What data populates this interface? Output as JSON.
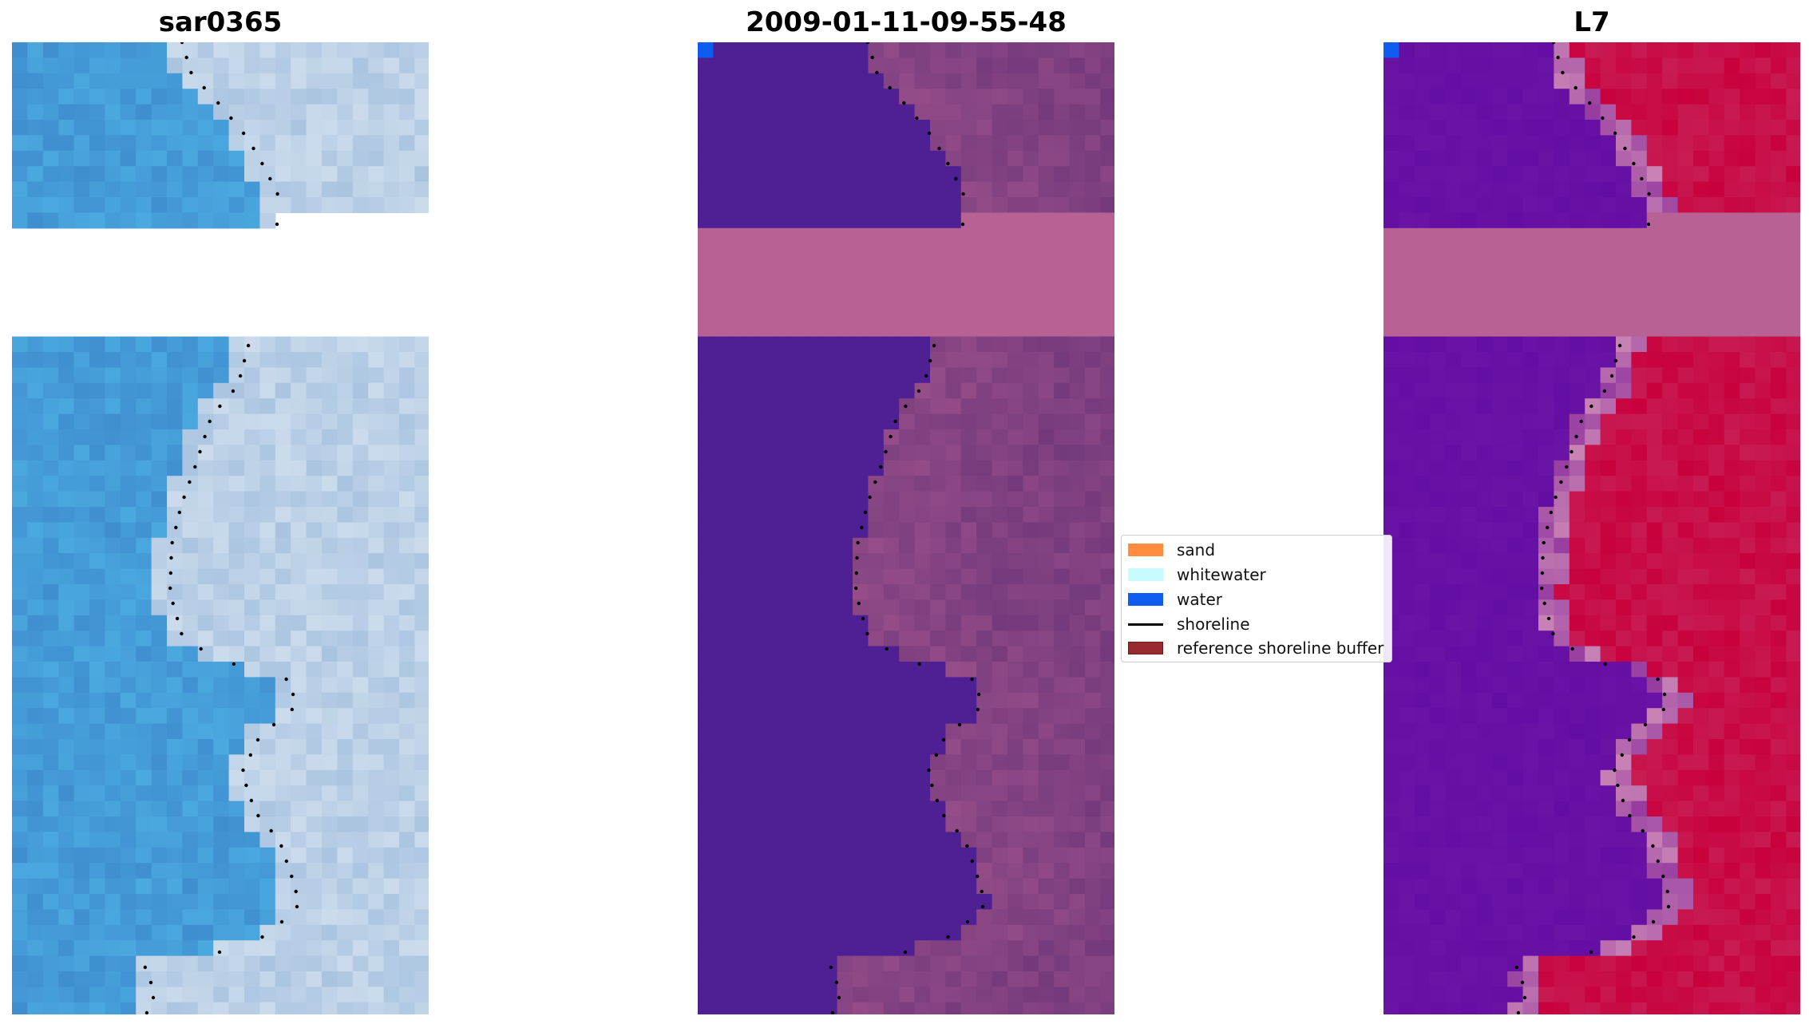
{
  "panels": [
    {
      "id": "rgb",
      "title": "sar0365",
      "colormap": "rgb"
    },
    {
      "id": "class",
      "title": "2009-01-11-09-55-48",
      "colormap": "class"
    },
    {
      "id": "index",
      "title": "L7",
      "colormap": "index"
    }
  ],
  "legend": {
    "items": [
      {
        "label": "sand",
        "kind": "patch",
        "color": "#ff8c3f"
      },
      {
        "label": "whitewater",
        "kind": "patch",
        "color": "#c8fbfb"
      },
      {
        "label": "water",
        "kind": "patch",
        "color": "#0e5cf0"
      },
      {
        "label": "shoreline",
        "kind": "line",
        "color": "#000000"
      },
      {
        "label": "reference shoreline buffer",
        "kind": "patch",
        "color": "#9a2a32"
      }
    ]
  },
  "colors": {
    "nodata_band": "#b86195",
    "water_class": "#4f1f94",
    "land_class_base": "#a4568f",
    "index_water": "#6a14a6",
    "index_land": "#c8003c",
    "rgb_water": "#3f8fd0",
    "rgb_land": "#aac4e0",
    "shoreline_dots": "#000000"
  }
}
